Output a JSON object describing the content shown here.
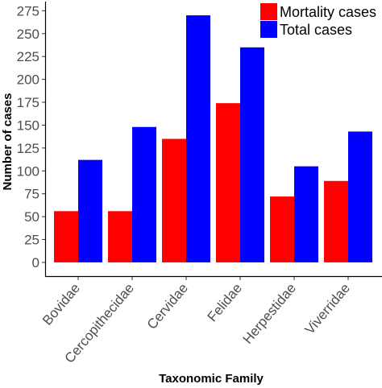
{
  "chart_data": {
    "type": "bar",
    "categories": [
      "Bovidae",
      "Cercopithecidae",
      "Cervidae",
      "Felidae",
      "Herpestidae",
      "Viverridae"
    ],
    "series": [
      {
        "name": "Mortality cases",
        "values": [
          56,
          56,
          135,
          174,
          72,
          89
        ],
        "color": "#ff0000"
      },
      {
        "name": "Total cases",
        "values": [
          112,
          148,
          270,
          235,
          105,
          143
        ],
        "color": "#0000ff"
      }
    ],
    "xlabel": "Taxonomic Family",
    "ylabel": "Number of cases",
    "yticks": [
      0,
      25,
      50,
      75,
      100,
      125,
      150,
      175,
      200,
      225,
      250,
      275
    ],
    "ylim": [
      -15,
      285
    ],
    "grid": false,
    "legend_position": "top-right",
    "tick_label_rotation": -50
  }
}
